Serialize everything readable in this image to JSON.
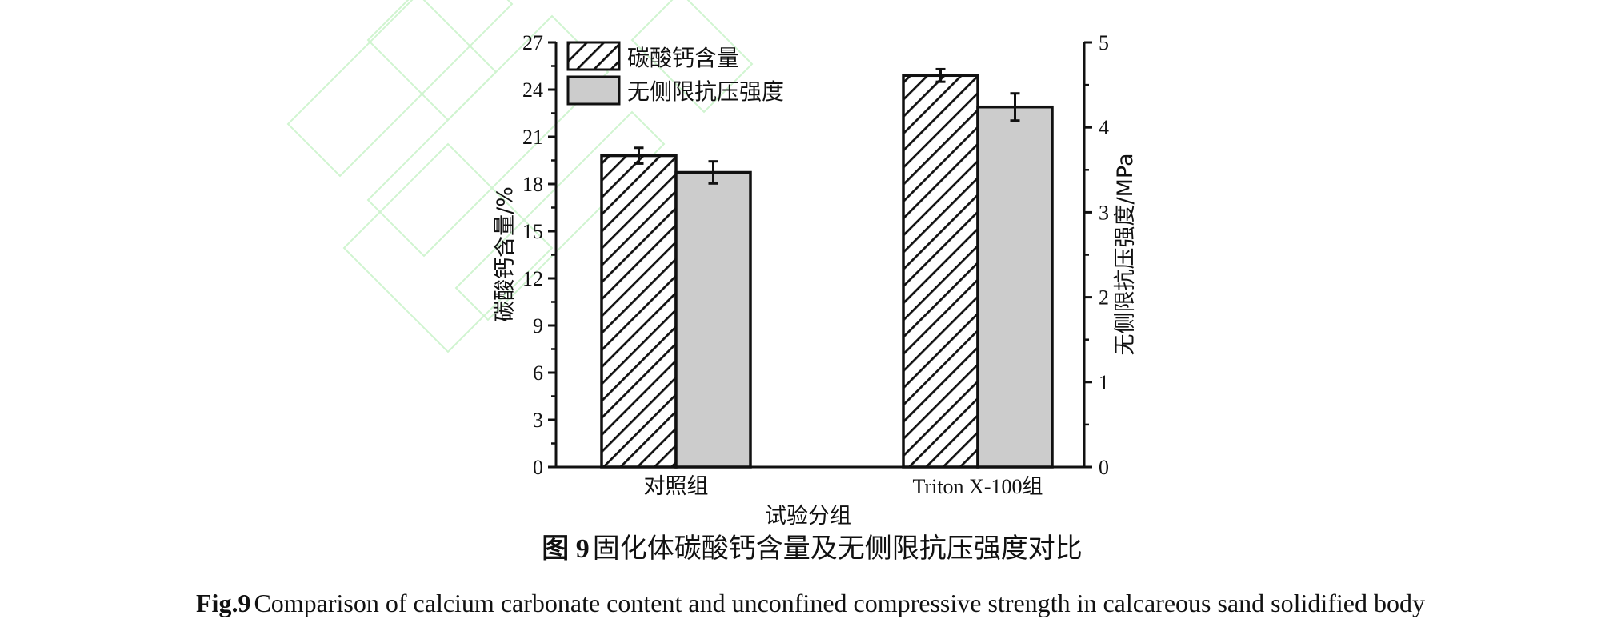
{
  "chart_data": {
    "type": "bar",
    "categories": [
      "对照组",
      "Triton X-100组"
    ],
    "series": [
      {
        "name": "碳酸钙含量",
        "axis": "left",
        "values": [
          19.8,
          24.9
        ],
        "errors": [
          0.5,
          0.4
        ],
        "pattern": "hatch"
      },
      {
        "name": "无侧限抗压强度",
        "axis": "right",
        "values": [
          3.47,
          4.24
        ],
        "errors": [
          0.13,
          0.16
        ],
        "fill": "#cccccc"
      }
    ],
    "xlabel": "试验分组",
    "ylabel_left": "碳酸钙含量/%",
    "ylabel_right": "无侧限抗压强度/MPa",
    "ylim_left": [
      0,
      27
    ],
    "yticks_left": [
      0,
      3,
      6,
      9,
      12,
      15,
      18,
      21,
      24,
      27
    ],
    "ylim_right": [
      0,
      5
    ],
    "yticks_right": [
      0,
      1,
      2,
      3,
      4,
      5
    ],
    "legend_position": "top-left",
    "grid": false
  },
  "caption": {
    "cn_label": "图 9",
    "cn_text": "固化体碳酸钙含量及无侧限抗压强度对比",
    "en_label": "Fig.9",
    "en_text": "Comparison of calcium carbonate content and unconfined compressive strength in calcareous sand solidified body"
  },
  "colors": {
    "axis": "#111111",
    "bar_gray": "#cccccc",
    "watermark": "#b7efb7"
  }
}
